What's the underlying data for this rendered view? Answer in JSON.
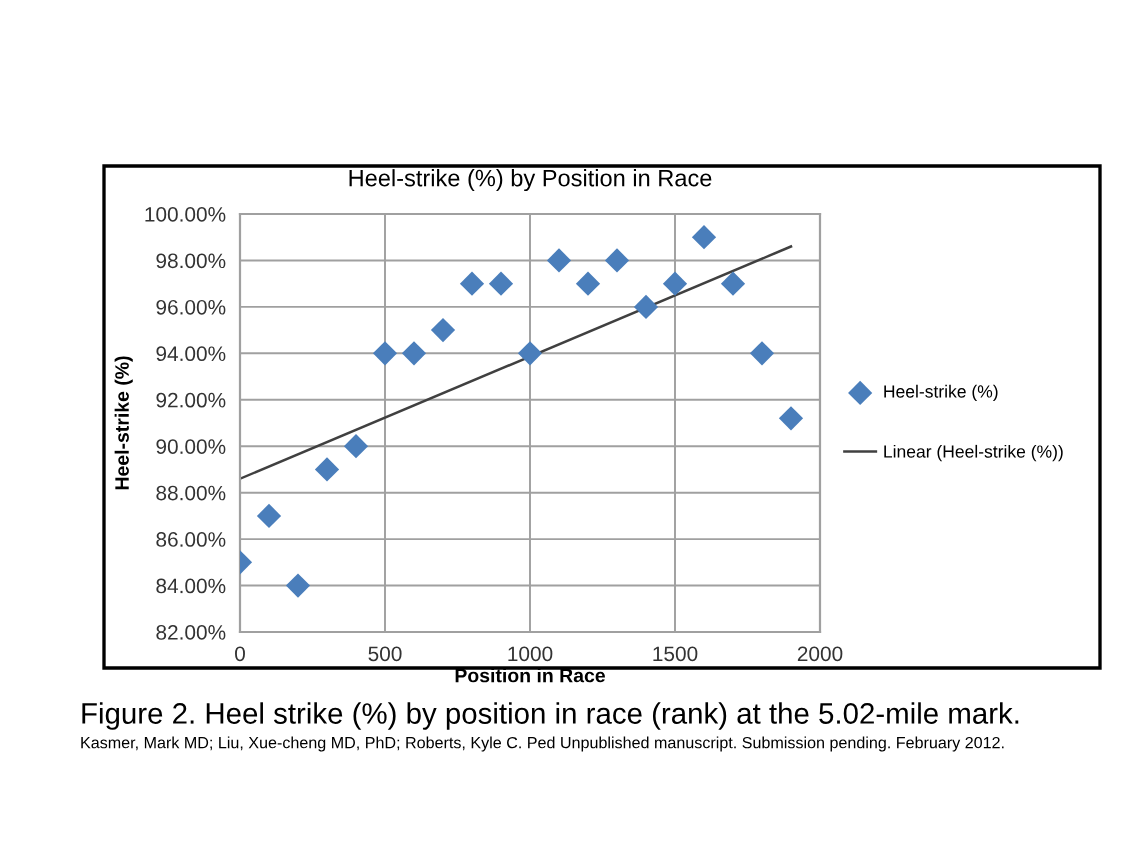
{
  "chart_data": {
    "type": "scatter",
    "title": "Heel-strike (%) by Position in Race",
    "xlabel": "Position in Race",
    "ylabel": "Heel-strike (%)",
    "x": [
      0,
      100,
      200,
      300,
      400,
      500,
      600,
      700,
      800,
      900,
      1000,
      1100,
      1200,
      1300,
      1400,
      1500,
      1600,
      1700,
      1800,
      1900
    ],
    "series": [
      {
        "name": "Heel-strike (%)",
        "color": "#4a7ebb",
        "marker": "diamond",
        "values": [
          85,
          87,
          84,
          89,
          90,
          94,
          94,
          95,
          97,
          97,
          94,
          98,
          97,
          98,
          96,
          97,
          99,
          97,
          94,
          91.2
        ]
      },
      {
        "name": "Linear (Heel-strike (%))",
        "type": "line",
        "color": "#404040",
        "line_style": "solid",
        "x": [
          0,
          1900
        ],
        "values": [
          88.6,
          98.6
        ]
      }
    ],
    "xlim": [
      0,
      2000
    ],
    "xticks": [
      0,
      500,
      1000,
      1500,
      2000
    ],
    "ylim": [
      82,
      100
    ],
    "yticks": [
      {
        "value": 82,
        "label": "82.00%"
      },
      {
        "value": 84,
        "label": "84.00%"
      },
      {
        "value": 86,
        "label": "86.00%"
      },
      {
        "value": 88,
        "label": "88.00%"
      },
      {
        "value": 90,
        "label": "90.00%"
      },
      {
        "value": 92,
        "label": "92.00%"
      },
      {
        "value": 94,
        "label": "94.00%"
      },
      {
        "value": 96,
        "label": "96.00%"
      },
      {
        "value": 98,
        "label": "98.00%"
      },
      {
        "value": 100,
        "label": "100.00%"
      }
    ],
    "grid": true,
    "legend": "right",
    "annotations": [
      "Figure 2. Heel strike (%) by position in race (rank) at the 5.02-mile mark.",
      "Kasmer, Mark MD; Liu, Xue-cheng MD, PhD; Roberts, Kyle C. Ped Unpublished manuscript. Submission pending. February 2012."
    ]
  }
}
